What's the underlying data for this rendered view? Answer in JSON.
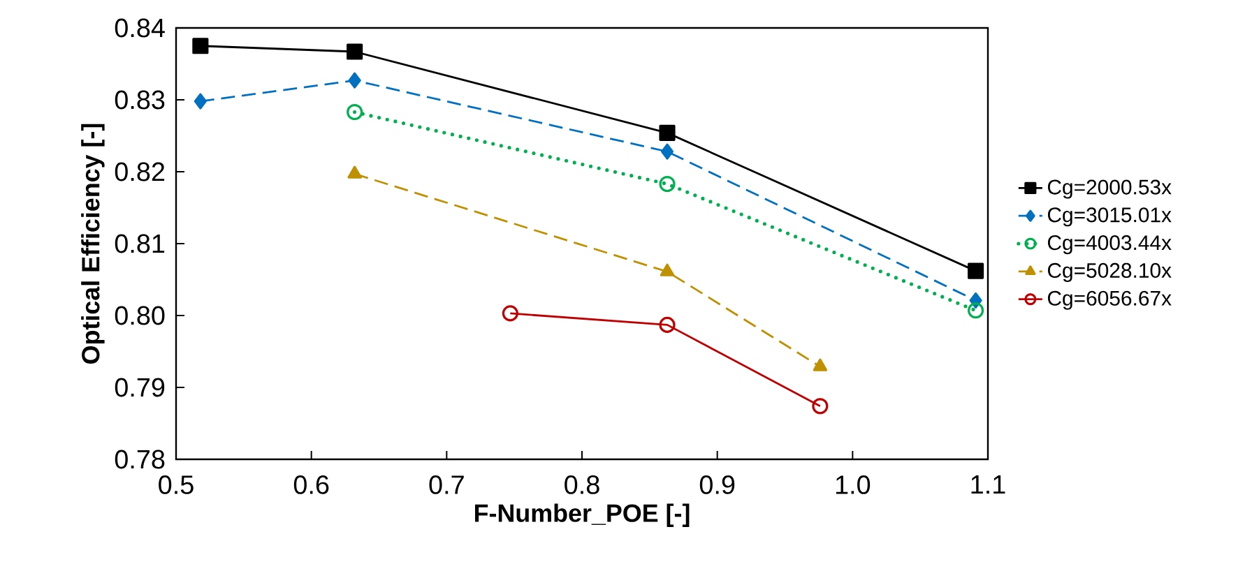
{
  "chart_data": {
    "type": "line",
    "xlabel": "F-Number_POE [-]",
    "ylabel": "Optical Efficiency [-]",
    "xlim": [
      0.5,
      1.1
    ],
    "xticks": [
      {
        "value": 0.5,
        "label": "0.5"
      },
      {
        "value": 0.6,
        "label": "0.6"
      },
      {
        "value": 0.7,
        "label": "0.7"
      },
      {
        "value": 0.8,
        "label": "0.8"
      },
      {
        "value": 0.9,
        "label": "0.9"
      },
      {
        "value": 1.0,
        "label": "1.0"
      },
      {
        "value": 1.1,
        "label": "1.1"
      }
    ],
    "ylim": [
      0.78,
      0.84
    ],
    "yticks": [
      {
        "value": 0.78,
        "label": "0.78"
      },
      {
        "value": 0.79,
        "label": "0.79"
      },
      {
        "value": 0.8,
        "label": "0.80"
      },
      {
        "value": 0.81,
        "label": "0.81"
      },
      {
        "value": 0.82,
        "label": "0.82"
      },
      {
        "value": 0.83,
        "label": "0.83"
      },
      {
        "value": 0.84,
        "label": "0.84"
      }
    ],
    "grid": false,
    "legend": "right",
    "series": [
      {
        "name": "Cg=2000.53x",
        "color": "#000000",
        "marker": "square",
        "line_style": "solid",
        "x": [
          0.518,
          0.632,
          0.863,
          1.091
        ],
        "values": [
          0.8375,
          0.8367,
          0.8254,
          0.8062
        ]
      },
      {
        "name": "Cg=3015.01x",
        "color": "#0070c0",
        "marker": "diamond",
        "line_style": "dashed",
        "x": [
          0.518,
          0.632,
          0.863,
          1.091
        ],
        "values": [
          0.8298,
          0.8327,
          0.8228,
          0.8021
        ]
      },
      {
        "name": "Cg=4003.44x",
        "color": "#00b050",
        "marker": "circle",
        "line_style": "dotted",
        "x": [
          0.632,
          0.863,
          1.091
        ],
        "values": [
          0.8283,
          0.8183,
          0.8007
        ]
      },
      {
        "name": "Cg=5028.10x",
        "color": "#bf9000",
        "marker": "triangle",
        "line_style": "dashed",
        "x": [
          0.632,
          0.863,
          0.976
        ],
        "values": [
          0.8197,
          0.8061,
          0.7929
        ]
      },
      {
        "name": "Cg=6056.67x",
        "color": "#c00000",
        "marker": "circle",
        "line_style": "solid",
        "x": [
          0.747,
          0.863,
          0.976
        ],
        "values": [
          0.8003,
          0.7987,
          0.7874
        ]
      }
    ]
  }
}
